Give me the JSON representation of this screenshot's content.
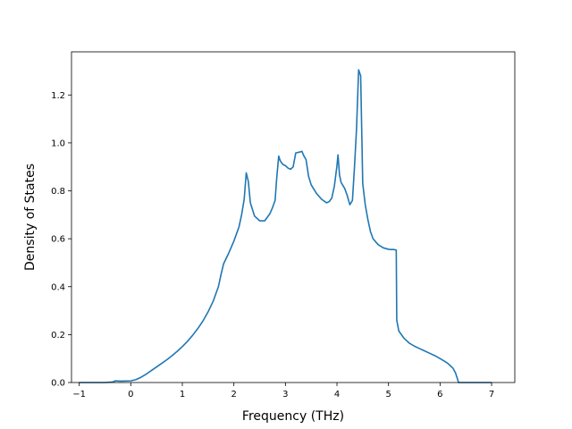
{
  "chart_data": {
    "type": "line",
    "title": "",
    "xlabel": "Frequency (THz)",
    "ylabel": "Density of States",
    "xlim": [
      -1.15,
      7.45
    ],
    "ylim": [
      0.0,
      1.38
    ],
    "grid": false,
    "legend": "none",
    "xticks": [
      -1,
      0,
      1,
      2,
      3,
      4,
      5,
      6,
      7
    ],
    "xtick_labels": [
      "−1",
      "0",
      "1",
      "2",
      "3",
      "4",
      "5",
      "6",
      "7"
    ],
    "yticks": [
      0.0,
      0.2,
      0.4,
      0.6,
      0.8,
      1.0,
      1.2
    ],
    "ytick_labels": [
      "0.0",
      "0.2",
      "0.4",
      "0.6",
      "0.8",
      "1.0",
      "1.2"
    ],
    "series": [
      {
        "color": "#1f77b4",
        "x": [
          -1.0,
          -0.5,
          -0.35,
          -0.3,
          -0.2,
          0.0,
          0.1,
          0.2,
          0.3,
          0.4,
          0.5,
          0.6,
          0.7,
          0.8,
          0.9,
          1.0,
          1.1,
          1.2,
          1.3,
          1.4,
          1.5,
          1.6,
          1.7,
          1.75,
          1.8,
          1.9,
          2.0,
          2.1,
          2.15,
          2.2,
          2.24,
          2.28,
          2.32,
          2.4,
          2.5,
          2.6,
          2.7,
          2.75,
          2.8,
          2.83,
          2.87,
          2.9,
          2.95,
          3.0,
          3.05,
          3.1,
          3.15,
          3.2,
          3.28,
          3.32,
          3.36,
          3.4,
          3.45,
          3.5,
          3.6,
          3.7,
          3.8,
          3.85,
          3.9,
          3.95,
          4.0,
          4.02,
          4.05,
          4.08,
          4.15,
          4.2,
          4.25,
          4.3,
          4.34,
          4.38,
          4.42,
          4.46,
          4.5,
          4.55,
          4.6,
          4.65,
          4.7,
          4.8,
          4.9,
          5.0,
          5.05,
          5.1,
          5.15,
          5.16,
          5.2,
          5.3,
          5.4,
          5.5,
          5.6,
          5.7,
          5.8,
          5.9,
          6.0,
          6.1,
          6.15,
          6.2,
          6.25,
          6.3,
          6.33,
          6.36,
          6.4,
          6.6,
          7.0
        ],
        "y": [
          0.0,
          0.0,
          0.002,
          0.007,
          0.006,
          0.007,
          0.012,
          0.022,
          0.035,
          0.05,
          0.065,
          0.08,
          0.095,
          0.112,
          0.13,
          0.15,
          0.172,
          0.197,
          0.225,
          0.257,
          0.295,
          0.34,
          0.4,
          0.45,
          0.495,
          0.54,
          0.59,
          0.65,
          0.7,
          0.765,
          0.875,
          0.84,
          0.75,
          0.695,
          0.675,
          0.675,
          0.705,
          0.73,
          0.76,
          0.85,
          0.945,
          0.925,
          0.91,
          0.905,
          0.895,
          0.89,
          0.9,
          0.958,
          0.962,
          0.965,
          0.945,
          0.93,
          0.86,
          0.825,
          0.79,
          0.765,
          0.75,
          0.755,
          0.77,
          0.82,
          0.905,
          0.95,
          0.865,
          0.835,
          0.81,
          0.78,
          0.742,
          0.76,
          0.9,
          1.06,
          1.305,
          1.28,
          0.83,
          0.74,
          0.68,
          0.63,
          0.6,
          0.575,
          0.562,
          0.556,
          0.555,
          0.555,
          0.553,
          0.26,
          0.215,
          0.185,
          0.165,
          0.152,
          0.142,
          0.132,
          0.122,
          0.112,
          0.1,
          0.087,
          0.08,
          0.07,
          0.06,
          0.04,
          0.02,
          0.0,
          0.0,
          0.0,
          0.0
        ]
      }
    ]
  }
}
